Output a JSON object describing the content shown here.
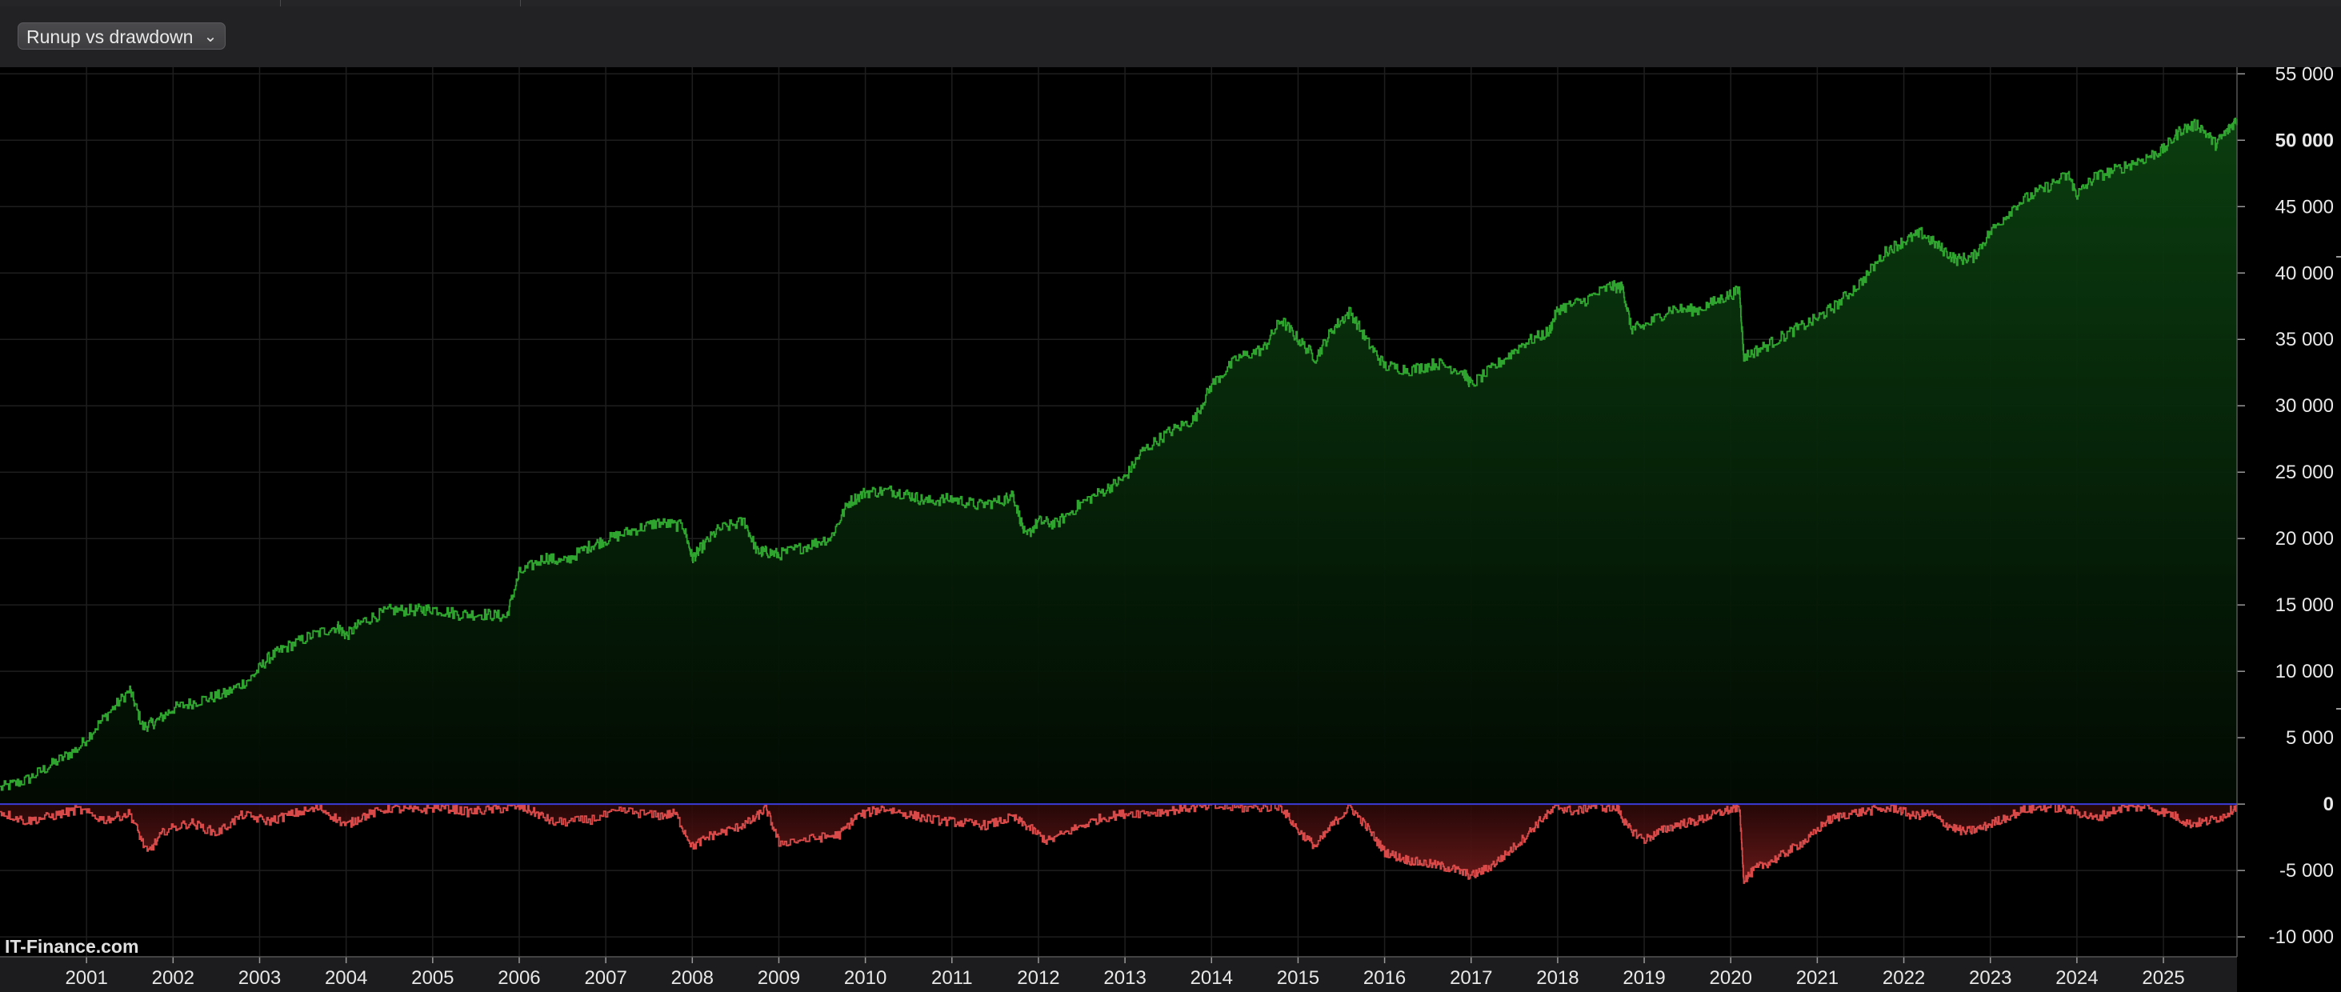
{
  "toolbar": {
    "view_select_label": "Runup vs drawdown",
    "chevron_icon": "chevron-down-icon"
  },
  "branding": {
    "text": "IT-Finance.com"
  },
  "colors": {
    "background": "#000000",
    "grid": "#1e1e1e",
    "runup_line": "#2fa52f",
    "runup_fill": "#0a3a0a",
    "drawdown_line": "#d84a4a",
    "drawdown_fill": "#5a1212",
    "zero_line": "#3b3bd8",
    "axis_text": "#e8e8e8"
  },
  "chart_data": {
    "type": "area",
    "title": "",
    "xlabel": "",
    "ylabel": "",
    "x_range": [
      2000.0,
      2025.85
    ],
    "ylim": [
      -11500,
      55500
    ],
    "grid": true,
    "y_ticks": [
      55000,
      50000,
      45000,
      40000,
      35000,
      30000,
      25000,
      20000,
      15000,
      10000,
      5000,
      0,
      -5000,
      -10000
    ],
    "y_tick_labels": [
      "55 000",
      "50 000",
      "45 000",
      "40 000",
      "35 000",
      "30 000",
      "25 000",
      "20 000",
      "15 000",
      "10 000",
      "5 000",
      "0",
      "-5 000",
      "-10 000"
    ],
    "y_bold_labels": [
      "50 000",
      "0"
    ],
    "x_ticks": [
      2001,
      2002,
      2003,
      2004,
      2005,
      2006,
      2007,
      2008,
      2009,
      2010,
      2011,
      2012,
      2013,
      2014,
      2015,
      2016,
      2017,
      2018,
      2019,
      2020,
      2021,
      2022,
      2023,
      2024,
      2025
    ],
    "x_tick_labels": [
      "2001",
      "2002",
      "2003",
      "2004",
      "2005",
      "2006",
      "2007",
      "2008",
      "2009",
      "2010",
      "2011",
      "2012",
      "2013",
      "2014",
      "2015",
      "2016",
      "2017",
      "2018",
      "2019",
      "2020",
      "2021",
      "2022",
      "2023",
      "2024",
      "2025"
    ],
    "series": [
      {
        "name": "",
        "kind": "runup",
        "x": [
          2000.0,
          2000.3,
          2000.6,
          2000.9,
          2001.2,
          2001.5,
          2001.65,
          2001.8,
          2002.0,
          2002.3,
          2002.6,
          2002.9,
          2003.1,
          2003.3,
          2003.6,
          2003.9,
          2004.0,
          2004.2,
          2004.5,
          2004.8,
          2005.0,
          2005.3,
          2005.6,
          2005.85,
          2006.0,
          2006.3,
          2006.5,
          2006.8,
          2007.0,
          2007.3,
          2007.6,
          2007.9,
          2008.0,
          2008.1,
          2008.3,
          2008.6,
          2008.75,
          2008.85,
          2009.0,
          2009.3,
          2009.6,
          2009.8,
          2010.0,
          2010.3,
          2010.5,
          2010.7,
          2011.0,
          2011.3,
          2011.6,
          2011.7,
          2011.85,
          2012.0,
          2012.2,
          2012.5,
          2012.8,
          2013.0,
          2013.2,
          2013.5,
          2013.8,
          2014.0,
          2014.3,
          2014.6,
          2014.8,
          2015.0,
          2015.2,
          2015.4,
          2015.6,
          2015.8,
          2016.0,
          2016.3,
          2016.6,
          2016.9,
          2017.0,
          2017.3,
          2017.6,
          2017.9,
          2018.0,
          2018.3,
          2018.6,
          2018.75,
          2018.85,
          2019.0,
          2019.3,
          2019.6,
          2019.9,
          2020.1,
          2020.15,
          2020.4,
          2020.7,
          2021.0,
          2021.2,
          2021.5,
          2021.8,
          2022.0,
          2022.2,
          2022.4,
          2022.6,
          2022.8,
          2023.0,
          2023.3,
          2023.6,
          2023.9,
          2024.0,
          2024.2,
          2024.5,
          2024.8,
          2025.0,
          2025.2,
          2025.4,
          2025.6,
          2025.75,
          2025.85
        ],
        "y": [
          1200,
          1800,
          3000,
          4200,
          6500,
          8600,
          5800,
          6200,
          7200,
          7800,
          8300,
          9500,
          11000,
          11800,
          12700,
          13400,
          12700,
          13800,
          14600,
          14600,
          14700,
          14300,
          14300,
          14100,
          17400,
          18600,
          18200,
          19400,
          19900,
          20600,
          21200,
          20900,
          18500,
          19300,
          20700,
          21300,
          19000,
          19000,
          18800,
          19400,
          20100,
          22700,
          23500,
          23600,
          23300,
          22800,
          23000,
          22500,
          22900,
          23400,
          20100,
          21300,
          21100,
          22700,
          23800,
          24600,
          26600,
          28000,
          29000,
          31600,
          33600,
          34300,
          36500,
          35000,
          33600,
          35800,
          37100,
          34800,
          33000,
          32700,
          33200,
          32600,
          31600,
          33100,
          34700,
          35600,
          37300,
          37900,
          39000,
          38900,
          35800,
          36000,
          37300,
          37200,
          38100,
          38700,
          33700,
          34500,
          35600,
          36600,
          37500,
          39300,
          41700,
          42400,
          43000,
          42000,
          41000,
          41200,
          43100,
          45200,
          46300,
          47400,
          45900,
          47200,
          47900,
          48700,
          49300,
          50800,
          51200,
          49700,
          50800,
          51600
        ]
      },
      {
        "name": "",
        "kind": "drawdown",
        "x": [
          2000.0,
          2000.3,
          2000.6,
          2000.9,
          2001.2,
          2001.5,
          2001.7,
          2001.9,
          2002.2,
          2002.5,
          2002.8,
          2003.1,
          2003.4,
          2003.7,
          2004.0,
          2004.2,
          2004.5,
          2004.8,
          2005.1,
          2005.4,
          2005.7,
          2006.0,
          2006.2,
          2006.4,
          2006.8,
          2007.2,
          2007.6,
          2007.8,
          2008.0,
          2008.2,
          2008.5,
          2008.7,
          2008.85,
          2009.0,
          2009.4,
          2009.7,
          2009.9,
          2010.2,
          2010.5,
          2010.8,
          2011.1,
          2011.4,
          2011.7,
          2011.9,
          2012.1,
          2012.4,
          2012.7,
          2013.0,
          2013.4,
          2013.7,
          2014.0,
          2014.4,
          2014.8,
          2015.0,
          2015.2,
          2015.4,
          2015.6,
          2015.8,
          2016.0,
          2016.2,
          2016.4,
          2016.6,
          2016.8,
          2017.0,
          2017.2,
          2017.4,
          2017.6,
          2017.8,
          2018.0,
          2018.2,
          2018.4,
          2018.7,
          2018.8,
          2019.0,
          2019.2,
          2019.4,
          2019.6,
          2019.8,
          2020.0,
          2020.1,
          2020.15,
          2020.3,
          2020.5,
          2020.7,
          2020.9,
          2021.1,
          2021.3,
          2021.6,
          2021.9,
          2022.1,
          2022.3,
          2022.5,
          2022.7,
          2022.9,
          2023.1,
          2023.4,
          2023.7,
          2024.0,
          2024.2,
          2024.5,
          2024.8,
          2025.1,
          2025.3,
          2025.5,
          2025.7,
          2025.85
        ],
        "y": [
          -600,
          -1300,
          -900,
          -400,
          -1200,
          -700,
          -3700,
          -2000,
          -1400,
          -2200,
          -800,
          -1300,
          -700,
          -300,
          -1600,
          -900,
          -300,
          -500,
          -200,
          -600,
          -400,
          -200,
          -700,
          -1400,
          -1200,
          -500,
          -900,
          -700,
          -3200,
          -2400,
          -1800,
          -1200,
          -300,
          -2900,
          -2600,
          -2300,
          -900,
          -300,
          -800,
          -1200,
          -1400,
          -1600,
          -1000,
          -1800,
          -2800,
          -1900,
          -1100,
          -700,
          -600,
          -300,
          -200,
          -300,
          -200,
          -2000,
          -3200,
          -1500,
          -200,
          -1800,
          -3600,
          -4100,
          -4400,
          -4600,
          -4900,
          -5400,
          -4800,
          -3800,
          -2600,
          -1200,
          -200,
          -600,
          -100,
          -400,
          -1700,
          -2700,
          -2000,
          -1500,
          -1300,
          -800,
          -400,
          -200,
          -5700,
          -4800,
          -4200,
          -3400,
          -2600,
          -1300,
          -800,
          -500,
          -300,
          -900,
          -700,
          -1600,
          -2100,
          -1800,
          -1200,
          -400,
          -200,
          -600,
          -1100,
          -300,
          -200,
          -800,
          -1500,
          -1300,
          -900,
          -100
        ]
      }
    ]
  }
}
